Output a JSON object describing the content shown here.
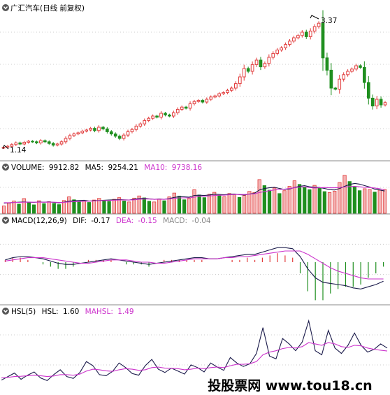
{
  "header": {
    "title": "广汇汽车(日线 前复权)",
    "price_high_label": "3.37",
    "price_low_label": "1.14"
  },
  "volume_panel": {
    "name": "VOLUME:",
    "value": "9912.82",
    "ma5_name": "MA5:",
    "ma5_value": "9254.21",
    "ma10_name": "MA10:",
    "ma10_value": "9738.16"
  },
  "macd_panel": {
    "name": "MACD(12,26,9)",
    "dif_name": "DIF:",
    "dif_value": "-0.17",
    "dea_name": "DEA:",
    "dea_value": "-0.15",
    "macd_name": "MACD:",
    "macd_value": "-0.04"
  },
  "hsl_panel": {
    "name": "HSL(5)",
    "hsl_name": "HSL:",
    "hsl_value": "1.60",
    "mahsl_name": "MAHSL:",
    "mahsl_value": "1.49"
  },
  "watermark": {
    "text": "投股票网 www.tou18.cn"
  },
  "colors": {
    "up": "#e23c3c",
    "down": "#1f8f1f",
    "line_dark": "#1a1a4a",
    "line_magenta": "#cc33cc",
    "grid": "#bfbfbf",
    "label_text": "#000000",
    "ma10_text": "#cc33cc",
    "dea_text": "#cc33cc",
    "macd_text": "#888888",
    "watermark_bg": "#ffffff"
  },
  "chart_data": [
    {
      "type": "candlestick",
      "title": "广汇汽车(日线 前复权)",
      "annotations": [
        {
          "label": "3.37",
          "y": 3.37,
          "note": "period high"
        },
        {
          "label": "1.14",
          "y": 1.14,
          "note": "period low"
        }
      ],
      "ylim": [
        1.0,
        3.5
      ],
      "grid": true,
      "close": [
        1.14,
        1.16,
        1.19,
        1.22,
        1.2,
        1.23,
        1.25,
        1.24,
        1.22,
        1.26,
        1.24,
        1.21,
        1.18,
        1.2,
        1.24,
        1.3,
        1.35,
        1.38,
        1.4,
        1.43,
        1.45,
        1.48,
        1.44,
        1.5,
        1.47,
        1.42,
        1.38,
        1.34,
        1.3,
        1.36,
        1.42,
        1.46,
        1.52,
        1.56,
        1.62,
        1.66,
        1.7,
        1.68,
        1.75,
        1.72,
        1.7,
        1.76,
        1.82,
        1.86,
        1.84,
        1.92,
        1.96,
        1.98,
        1.95,
        2.0,
        2.04,
        2.06,
        2.1,
        2.12,
        2.16,
        2.2,
        2.28,
        2.4,
        2.55,
        2.5,
        2.62,
        2.7,
        2.58,
        2.64,
        2.75,
        2.82,
        2.88,
        2.92,
        2.98,
        3.04,
        3.1,
        3.14,
        3.2,
        3.12,
        3.22,
        3.3,
        3.36,
        2.74,
        2.52,
        2.2,
        2.18,
        2.36,
        2.44,
        2.5,
        2.54,
        2.6,
        2.57,
        2.3,
        2.02,
        1.88,
        2.0,
        1.9,
        1.94
      ]
    },
    {
      "type": "bar",
      "title": "VOLUME",
      "series": [
        {
          "name": "VOLUME",
          "values": [
            3000,
            4200,
            5100,
            3800,
            6100,
            4400,
            3500,
            5200,
            4000,
            4800,
            4100,
            3600,
            5300,
            6800,
            5600,
            4800,
            5000,
            4500,
            5500,
            6200,
            5400,
            4900,
            5800,
            6500,
            5100,
            4700,
            6300,
            7200,
            6400,
            5000,
            4700,
            5900,
            5200,
            6800,
            8400,
            7100,
            5600,
            6200,
            9800,
            7600,
            6500,
            7900,
            8700,
            7300,
            6900,
            8200,
            7800,
            6600,
            7400,
            9100,
            8600,
            14000,
            11500,
            9600,
            10500,
            8200,
            9400,
            11200,
            13500,
            12000,
            10800,
            9800,
            11600,
            10400,
            9000,
            8600,
            9200,
            12800,
            15800,
            13200,
            11000,
            9400,
            10200,
            9900,
            8800,
            9600,
            9912.82
          ]
        },
        {
          "name": "MA5",
          "values": [
            4200,
            4300,
            4500,
            4600,
            4700,
            4600,
            4500,
            4700,
            4600,
            4700,
            4500,
            4300,
            4600,
            5000,
            5200,
            5300,
            5400,
            5100,
            5200,
            5300,
            5400,
            5500,
            5600,
            5700,
            5600,
            5500,
            5800,
            6100,
            6200,
            6000,
            5800,
            5900,
            5800,
            6100,
            6600,
            6900,
            6800,
            6700,
            7400,
            7500,
            7400,
            7600,
            7900,
            7800,
            7700,
            7900,
            8000,
            7700,
            7600,
            8000,
            8300,
            9700,
            10300,
            10600,
            10800,
            10300,
            9900,
            10100,
            10700,
            11200,
            11500,
            11000,
            10800,
            10700,
            10300,
            9800,
            9700,
            10300,
            11200,
            12000,
            12400,
            12100,
            11500,
            10900,
            10000,
            9700,
            9254.21
          ]
        },
        {
          "name": "MA10",
          "values": [
            4400,
            4400,
            4500,
            4500,
            4600,
            4600,
            4600,
            4600,
            4600,
            4600,
            4600,
            4500,
            4500,
            4700,
            4800,
            4900,
            5000,
            5000,
            5100,
            5200,
            5300,
            5300,
            5400,
            5500,
            5500,
            5500,
            5600,
            5800,
            5900,
            5900,
            5800,
            5800,
            5800,
            5900,
            6200,
            6400,
            6400,
            6400,
            6700,
            7000,
            7100,
            7200,
            7400,
            7500,
            7500,
            7700,
            7800,
            7800,
            7800,
            7900,
            8100,
            8600,
            9000,
            9400,
            9700,
            9900,
            10000,
            10300,
            10600,
            10900,
            11000,
            10700,
            10500,
            10600,
            10700,
            10600,
            10600,
            10700,
            10900,
            11100,
            11200,
            11000,
            10800,
            10700,
            10500,
            10200,
            9738.16
          ]
        }
      ]
    },
    {
      "type": "line",
      "title": "MACD(12,26,9)",
      "series": [
        {
          "name": "DIF",
          "values": [
            0.02,
            0.04,
            0.05,
            0.05,
            0.04,
            0.03,
            0.01,
            -0.01,
            -0.02,
            -0.02,
            -0.01,
            0.0,
            0.01,
            0.02,
            0.03,
            0.02,
            0.01,
            0.0,
            -0.01,
            -0.02,
            -0.01,
            0.0,
            0.01,
            0.02,
            0.03,
            0.04,
            0.04,
            0.03,
            0.03,
            0.04,
            0.05,
            0.06,
            0.07,
            0.07,
            0.09,
            0.11,
            0.13,
            0.13,
            0.12,
            0.05,
            -0.06,
            -0.14,
            -0.18,
            -0.19,
            -0.2,
            -0.21,
            -0.23,
            -0.24,
            -0.22,
            -0.2,
            -0.17
          ]
        },
        {
          "name": "DEA",
          "values": [
            0.01,
            0.02,
            0.03,
            0.04,
            0.04,
            0.04,
            0.03,
            0.02,
            0.01,
            0.0,
            -0.01,
            -0.01,
            0.0,
            0.01,
            0.02,
            0.02,
            0.02,
            0.01,
            0.0,
            0.0,
            -0.01,
            -0.01,
            0.0,
            0.01,
            0.02,
            0.03,
            0.03,
            0.03,
            0.03,
            0.04,
            0.04,
            0.05,
            0.05,
            0.06,
            0.07,
            0.08,
            0.09,
            0.1,
            0.1,
            0.1,
            0.07,
            0.03,
            -0.01,
            -0.05,
            -0.08,
            -0.1,
            -0.12,
            -0.14,
            -0.15,
            -0.15,
            -0.15
          ]
        },
        {
          "name": "MACD",
          "values": [
            0.02,
            0.04,
            0.04,
            0.02,
            0.0,
            -0.02,
            -0.04,
            -0.06,
            -0.06,
            -0.04,
            0.0,
            0.02,
            0.02,
            0.02,
            0.02,
            0.0,
            -0.02,
            -0.02,
            -0.02,
            -0.04,
            0.0,
            0.02,
            0.02,
            0.02,
            0.02,
            0.02,
            0.02,
            0.0,
            0.0,
            0.0,
            0.02,
            0.02,
            0.04,
            0.02,
            0.04,
            0.06,
            0.08,
            0.06,
            0.04,
            -0.1,
            -0.26,
            -0.34,
            -0.34,
            -0.28,
            -0.24,
            -0.22,
            -0.22,
            -0.2,
            -0.14,
            -0.1,
            -0.04
          ]
        }
      ]
    },
    {
      "type": "line",
      "title": "HSL(5)",
      "series": [
        {
          "name": "HSL",
          "values": [
            0.42,
            0.55,
            0.68,
            0.45,
            0.6,
            0.72,
            0.5,
            0.4,
            0.62,
            0.8,
            0.55,
            0.48,
            0.7,
            1.1,
            0.95,
            0.62,
            0.58,
            0.74,
            1.05,
            0.88,
            0.66,
            0.6,
            0.95,
            1.18,
            0.82,
            0.7,
            0.86,
            0.75,
            0.64,
            0.98,
            0.88,
            0.72,
            1.05,
            0.9,
            0.78,
            1.25,
            1.05,
            0.92,
            1.02,
            1.4,
            2.35,
            1.3,
            1.2,
            1.95,
            1.75,
            1.5,
            1.82,
            2.6,
            1.5,
            1.35,
            2.25,
            1.6,
            1.4,
            1.7,
            2.15,
            1.7,
            1.45,
            1.55,
            1.75,
            1.6
          ]
        },
        {
          "name": "MAHSL",
          "values": [
            0.5,
            0.52,
            0.55,
            0.56,
            0.58,
            0.6,
            0.58,
            0.55,
            0.57,
            0.62,
            0.62,
            0.6,
            0.64,
            0.75,
            0.82,
            0.8,
            0.76,
            0.74,
            0.8,
            0.84,
            0.82,
            0.78,
            0.8,
            0.88,
            0.9,
            0.86,
            0.85,
            0.84,
            0.8,
            0.82,
            0.86,
            0.84,
            0.88,
            0.9,
            0.88,
            0.95,
            1.0,
            1.0,
            1.02,
            1.1,
            1.35,
            1.45,
            1.5,
            1.58,
            1.62,
            1.6,
            1.65,
            1.8,
            1.75,
            1.7,
            1.8,
            1.75,
            1.65,
            1.62,
            1.7,
            1.68,
            1.6,
            1.55,
            1.52,
            1.49
          ]
        }
      ]
    }
  ]
}
